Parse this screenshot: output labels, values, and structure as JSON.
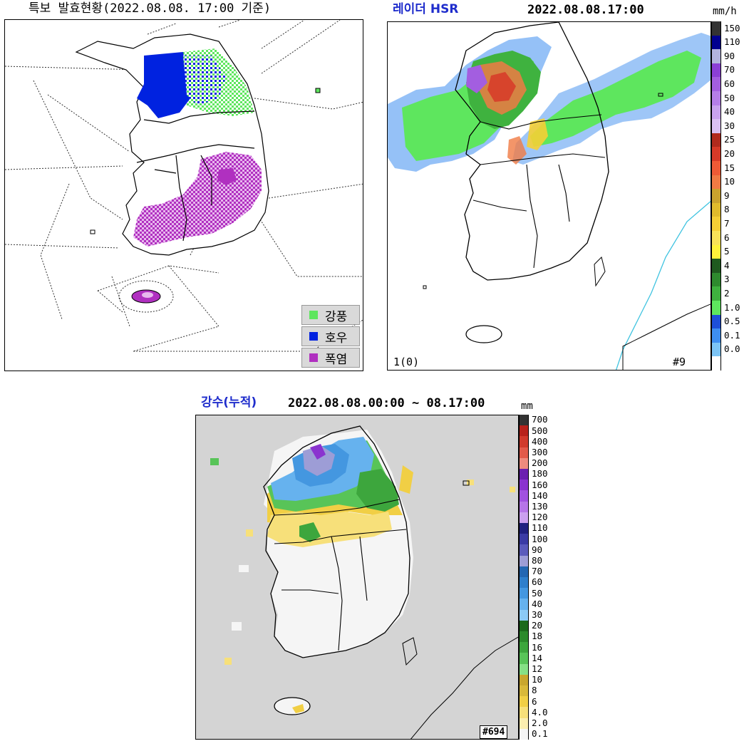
{
  "panel_warning": {
    "title": "특보 발효현황(2022.08.08. 17:00 기준)",
    "legend": [
      {
        "label": "강풍",
        "color": "#5ee65e"
      },
      {
        "label": "호우",
        "color": "#0022e0"
      },
      {
        "label": "폭염",
        "color": "#b030c0"
      }
    ]
  },
  "panel_radar": {
    "title_name": "레이더 HSR",
    "title_time": "2022.08.08.17:00",
    "unit": "mm/h",
    "corner_left": "1(0)",
    "corner_right": "#9",
    "scale": [
      {
        "label": "150",
        "color": "#333333"
      },
      {
        "label": "110",
        "color": "#000090"
      },
      {
        "label": "90",
        "color": "#b3b4de"
      },
      {
        "label": "70",
        "color": "#8b3fd6"
      },
      {
        "label": "60",
        "color": "#a35ee0"
      },
      {
        "label": "50",
        "color": "#b57ee8"
      },
      {
        "label": "40",
        "color": "#c9a3ee"
      },
      {
        "label": "30",
        "color": "#d9c0f2"
      },
      {
        "label": "25",
        "color": "#b02a1d"
      },
      {
        "label": "20",
        "color": "#d73a28"
      },
      {
        "label": "15",
        "color": "#ee5a36"
      },
      {
        "label": "10",
        "color": "#f07a44"
      },
      {
        "label": "9",
        "color": "#c9a22e"
      },
      {
        "label": "8",
        "color": "#e0bb2c"
      },
      {
        "label": "7",
        "color": "#f5cf35"
      },
      {
        "label": "6",
        "color": "#f8e258"
      },
      {
        "label": "5",
        "color": "#fff23a"
      },
      {
        "label": "4",
        "color": "#1f5a1f"
      },
      {
        "label": "3",
        "color": "#2e8a2e"
      },
      {
        "label": "2",
        "color": "#3fb23f"
      },
      {
        "label": "1.0",
        "color": "#5ee65e"
      },
      {
        "label": "0.5",
        "color": "#1e4fd8"
      },
      {
        "label": "0.1",
        "color": "#3e8ef0"
      },
      {
        "label": "0.0",
        "color": "#7cc4f5"
      },
      {
        "label": "",
        "color": "#ffffff"
      }
    ]
  },
  "panel_accum": {
    "title_name": "강수(누적)",
    "title_time": "2022.08.08.00:00 ~ 08.17:00",
    "unit": "mm",
    "corner_right": "#694",
    "scale": [
      {
        "label": "700",
        "color": "#333333"
      },
      {
        "label": "500",
        "color": "#b8221b"
      },
      {
        "label": "400",
        "color": "#d13a2c"
      },
      {
        "label": "300",
        "color": "#e25a4a"
      },
      {
        "label": "200",
        "color": "#ee8b7e"
      },
      {
        "label": "180",
        "color": "#6b1fb0"
      },
      {
        "label": "160",
        "color": "#8a33cf"
      },
      {
        "label": "140",
        "color": "#a152e0"
      },
      {
        "label": "130",
        "color": "#b675e8"
      },
      {
        "label": "120",
        "color": "#cba0ef"
      },
      {
        "label": "110",
        "color": "#202080"
      },
      {
        "label": "100",
        "color": "#3b3ba5"
      },
      {
        "label": "90",
        "color": "#5b5bbc"
      },
      {
        "label": "80",
        "color": "#9d9dd6"
      },
      {
        "label": "70",
        "color": "#2367b3"
      },
      {
        "label": "60",
        "color": "#2f7fcc"
      },
      {
        "label": "50",
        "color": "#4497e0"
      },
      {
        "label": "40",
        "color": "#66b2ee"
      },
      {
        "label": "30",
        "color": "#8ccaf5"
      },
      {
        "label": "20",
        "color": "#1c6a1c"
      },
      {
        "label": "18",
        "color": "#2b8a2b"
      },
      {
        "label": "16",
        "color": "#3da63d"
      },
      {
        "label": "14",
        "color": "#58c458"
      },
      {
        "label": "12",
        "color": "#86e086"
      },
      {
        "label": "10",
        "color": "#c9a72e"
      },
      {
        "label": "8",
        "color": "#d9b93a"
      },
      {
        "label": "6",
        "color": "#f1cf45"
      },
      {
        "label": "4.0",
        "color": "#f7e07a"
      },
      {
        "label": "2.0",
        "color": "#fbeeb0"
      },
      {
        "label": "0.1",
        "color": "#f5f5f5"
      }
    ]
  }
}
